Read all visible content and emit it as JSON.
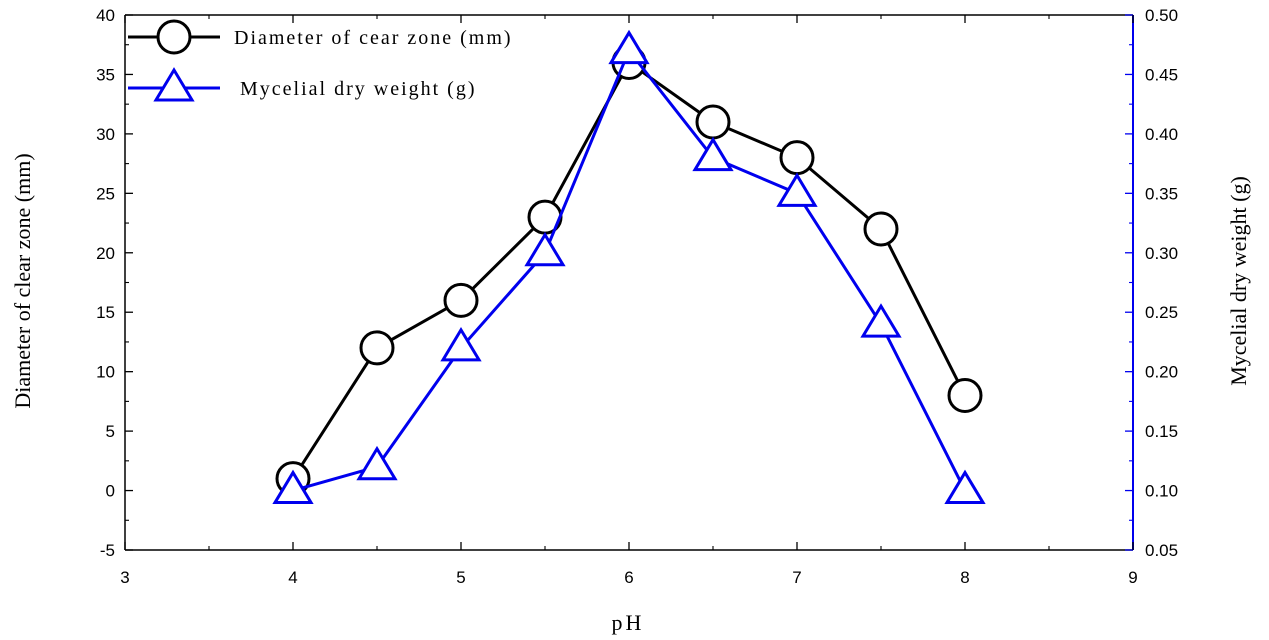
{
  "chart_data": {
    "type": "line",
    "x": [
      4,
      4.5,
      5,
      5.5,
      6,
      6.5,
      7,
      7.5,
      8
    ],
    "xlabel": "pH",
    "xlim": [
      3,
      9
    ],
    "xticks": [
      3,
      4,
      5,
      6,
      7,
      8,
      9
    ],
    "y_left": {
      "label": "Diameter of clear zone (mm)",
      "lim": [
        -5,
        40
      ],
      "ticks": [
        -5,
        0,
        5,
        10,
        15,
        20,
        25,
        30,
        35,
        40
      ]
    },
    "y_right": {
      "label": "Mycelial dry weight (g)",
      "lim": [
        0.05,
        0.5
      ],
      "ticks": [
        "0.05",
        "0.10",
        "0.15",
        "0.20",
        "0.25",
        "0.30",
        "0.35",
        "0.40",
        "0.45",
        "0.50"
      ]
    },
    "series": [
      {
        "name": "Diameter of cear zone (mm)",
        "axis": "left",
        "color": "#000000",
        "marker": "circle",
        "values": [
          1,
          12,
          16,
          23,
          36,
          31,
          28,
          22,
          8
        ]
      },
      {
        "name": "Mycelial dry weight (g)",
        "axis": "right",
        "color": "#0000ee",
        "marker": "triangle",
        "values": [
          0.1,
          0.12,
          0.22,
          0.3,
          0.47,
          0.38,
          0.35,
          0.24,
          0.1
        ]
      }
    ],
    "legend_position": "top-left",
    "grid": false
  }
}
